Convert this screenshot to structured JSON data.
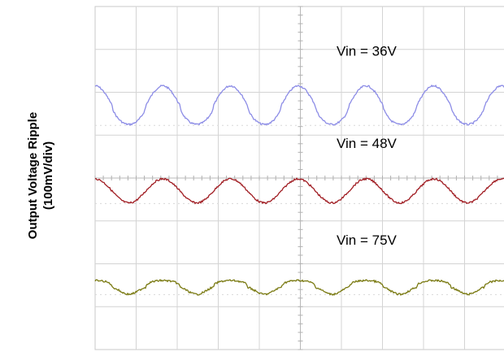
{
  "chart_data": {
    "type": "line",
    "title": "",
    "ylabel": "Output Voltage Ripple",
    "ylabel_sub": "(100mV/div)",
    "xlabel": "",
    "divisions": {
      "x": 10,
      "y": 8
    },
    "grid": true,
    "x": [
      0,
      1,
      2,
      3,
      4,
      5,
      6,
      7,
      8,
      9,
      10
    ],
    "series": [
      {
        "name": "Vin = 36V",
        "color": "#8c8ce6",
        "offset_div": 2.3,
        "amplitude_div": 0.45,
        "period_div": 1.65,
        "phase_div": 0.0,
        "shape": "cusp-trough"
      },
      {
        "name": "Vin = 48V",
        "color": "#a01c22",
        "offset_div": 4.3,
        "amplitude_div": 0.28,
        "period_div": 1.65,
        "phase_div": 0.0,
        "shape": "sine"
      },
      {
        "name": "Vin = 75V",
        "color": "#7a7a12",
        "offset_div": 6.55,
        "amplitude_div": 0.16,
        "period_div": 1.65,
        "phase_div": 0.0,
        "shape": "flat-top"
      }
    ]
  }
}
